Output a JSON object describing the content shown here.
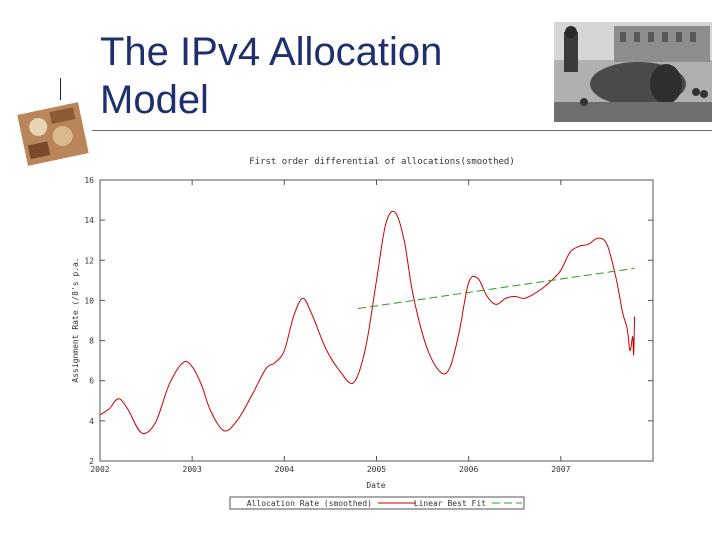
{
  "slide": {
    "title_line1": "The IPv4 Allocation",
    "title_line2": "Model"
  },
  "chart_data": {
    "type": "line",
    "title": "First order differential of allocations(smoothed)",
    "xlabel": "Date",
    "ylabel": "Assignment Rate (/8's p.a.",
    "xlim": [
      2002,
      2008
    ],
    "ylim": [
      2,
      16
    ],
    "x_ticks": [
      "2002",
      "2003",
      "2004",
      "2005",
      "2006",
      "2007"
    ],
    "y_ticks": [
      "2",
      "4",
      "6",
      "8",
      "10",
      "12",
      "14",
      "16"
    ],
    "grid": false,
    "legend_position": "bottom",
    "series": [
      {
        "name": "Allocation Rate (smoothed)",
        "color": "#cc0000",
        "x": [
          2002.0,
          2002.1,
          2002.2,
          2002.3,
          2002.45,
          2002.6,
          2002.75,
          2002.9,
          2003.0,
          2003.1,
          2003.2,
          2003.35,
          2003.5,
          2003.65,
          2003.8,
          2003.9,
          2004.0,
          2004.1,
          2004.2,
          2004.3,
          2004.45,
          2004.6,
          2004.75,
          2004.88,
          2005.0,
          2005.1,
          2005.2,
          2005.3,
          2005.4,
          2005.55,
          2005.7,
          2005.8,
          2005.9,
          2006.0,
          2006.1,
          2006.2,
          2006.3,
          2006.4,
          2006.5,
          2006.6,
          2006.7,
          2006.8,
          2006.9,
          2007.0,
          2007.1,
          2007.2,
          2007.3,
          2007.4,
          2007.5,
          2007.6,
          2007.67,
          2007.72,
          2007.75,
          2007.78,
          2007.79,
          2007.8
        ],
        "y": [
          4.3,
          4.6,
          5.1,
          4.6,
          3.4,
          3.9,
          5.8,
          6.9,
          6.7,
          5.8,
          4.5,
          3.5,
          4.1,
          5.3,
          6.6,
          6.9,
          7.5,
          9.2,
          10.1,
          9.3,
          7.6,
          6.5,
          5.9,
          7.6,
          11.0,
          13.8,
          14.4,
          13.0,
          10.2,
          7.6,
          6.4,
          6.7,
          8.5,
          10.9,
          11.1,
          10.2,
          9.8,
          10.1,
          10.2,
          10.1,
          10.3,
          10.6,
          11.0,
          11.5,
          12.4,
          12.7,
          12.8,
          13.1,
          12.8,
          11.1,
          9.4,
          8.6,
          7.5,
          8.2,
          7.3,
          9.2
        ]
      },
      {
        "name": "Linear Best Fit",
        "color": "#22a022",
        "dashed": true,
        "x": [
          2004.8,
          2007.8
        ],
        "y": [
          9.6,
          11.6
        ]
      }
    ]
  }
}
